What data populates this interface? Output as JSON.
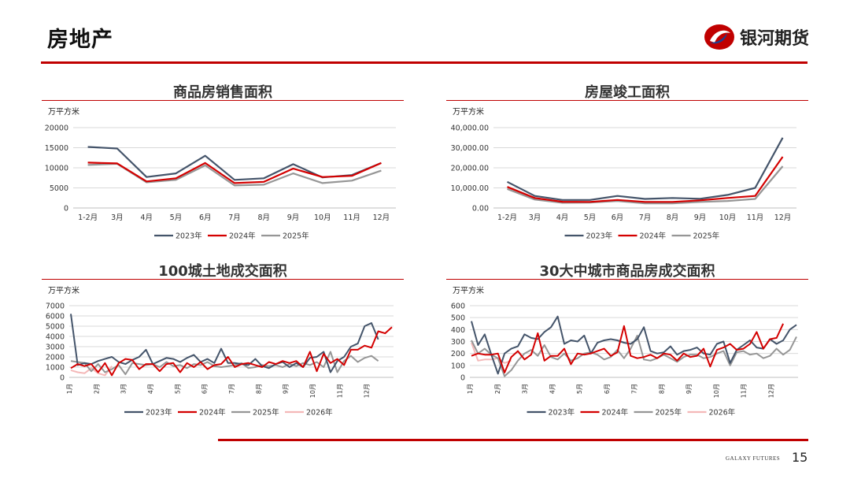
{
  "header": {
    "title": "房地产",
    "brand": "银河期货"
  },
  "footer": {
    "brand": "GALAXY FUTURES",
    "page": "15"
  },
  "colors": {
    "s2023": "#44546a",
    "s2024": "#d40000",
    "s2025": "#969696",
    "s2026": "#f4b8b8",
    "accent": "#c00000"
  },
  "chart_data": [
    {
      "id": "sales",
      "type": "line",
      "title": "商品房销售面积",
      "unit": "万平方米",
      "categories": [
        "1-2月",
        "3月",
        "4月",
        "5月",
        "6月",
        "7月",
        "8月",
        "9月",
        "10月",
        "11月",
        "12月"
      ],
      "ylim": [
        0,
        20000
      ],
      "yticks": [
        "20000",
        "15000",
        "10000",
        "5000",
        "0"
      ],
      "series": [
        {
          "name": "2023年",
          "values": [
            15200,
            14800,
            7700,
            8600,
            13000,
            7000,
            7400,
            10900,
            7600,
            8200,
            11200
          ]
        },
        {
          "name": "2024年",
          "values": [
            11300,
            11100,
            6600,
            7400,
            11200,
            6200,
            6500,
            9800,
            7700,
            8000,
            11200
          ]
        },
        {
          "name": "2025年",
          "values": [
            10700,
            11000,
            6400,
            7000,
            10600,
            5600,
            5800,
            8600,
            6200,
            6800,
            9300
          ]
        }
      ]
    },
    {
      "id": "completion",
      "type": "line",
      "title": "房屋竣工面积",
      "unit": "万平方米",
      "categories": [
        "1-2月",
        "3月",
        "4月",
        "5月",
        "6月",
        "7月",
        "8月",
        "9月",
        "10月",
        "11月",
        "12月"
      ],
      "ylim": [
        0,
        40000
      ],
      "yticks": [
        "40,000.00",
        "30,000.00",
        "20,000.00",
        "10,000.00",
        "0.00"
      ],
      "series": [
        {
          "name": "2023年",
          "values": [
            13000,
            6000,
            4000,
            4000,
            6000,
            4500,
            5000,
            4600,
            6500,
            10000,
            35000
          ]
        },
        {
          "name": "2024年",
          "values": [
            10500,
            5000,
            3100,
            3000,
            4000,
            3000,
            3000,
            3800,
            5000,
            6000,
            25500
          ]
        },
        {
          "name": "2025年",
          "values": [
            9500,
            4200,
            2600,
            2700,
            3500,
            2300,
            2300,
            3000,
            3500,
            4500,
            20800
          ]
        }
      ]
    },
    {
      "id": "land100",
      "type": "line",
      "title": "100城土地成交面积",
      "unit": "万平方米",
      "ylim": [
        0,
        7000
      ],
      "yticks": [
        "7000",
        "6000",
        "5000",
        "4000",
        "3000",
        "2000",
        "1000",
        "0"
      ],
      "xticks": [
        "1月",
        "2月",
        "3月",
        "4月",
        "5月",
        "6月",
        "7月",
        "8月",
        "9月",
        "10月",
        "11月",
        "12月"
      ],
      "series": [
        {
          "name": "2023年",
          "values": [
            6200,
            1200,
            1400,
            1300,
            1600,
            1800,
            2000,
            1500,
            1300,
            1700,
            2000,
            2700,
            1300,
            1600,
            1900,
            1800,
            1500,
            1900,
            2200,
            1500,
            1800,
            1400,
            2800,
            1400,
            1400,
            1300,
            1200,
            1800,
            1100,
            900,
            1300,
            1500,
            1000,
            1400,
            1000,
            1900,
            2000,
            2500,
            500,
            1600,
            2000,
            3000,
            3300,
            5000,
            5300,
            3700
          ]
        },
        {
          "name": "2024年",
          "values": [
            900,
            1300,
            1100,
            1300,
            500,
            1400,
            200,
            1400,
            1800,
            1700,
            800,
            1300,
            1300,
            600,
            1300,
            1400,
            500,
            1400,
            1000,
            1500,
            800,
            1200,
            1300,
            2000,
            1000,
            1300,
            1400,
            1200,
            1000,
            1500,
            1300,
            1600,
            1400,
            1600,
            1000,
            2500,
            600,
            2300,
            1400,
            1800,
            1200,
            2700,
            2700,
            3100,
            2900,
            4500,
            4300,
            4900
          ]
        },
        {
          "name": "2025年",
          "values": [
            1600,
            1500,
            1400,
            600,
            1300,
            500,
            800,
            1200,
            300,
            1400,
            1300,
            1200,
            1300,
            1000,
            1500,
            1100,
            1200,
            900,
            1300,
            1200,
            1500,
            1100,
            1000,
            1100,
            1200,
            1400,
            900,
            1000,
            1200,
            1100,
            1200,
            1000,
            1300,
            1100,
            1400,
            1200,
            1500,
            1000,
            2500,
            500,
            1600,
            2100,
            1500,
            1900,
            2100,
            1600
          ]
        },
        {
          "name": "2026年",
          "values": [
            700,
            500,
            400,
            900,
            400,
            200,
            1100
          ]
        }
      ]
    },
    {
      "id": "sales30",
      "type": "line",
      "title": "30大中城市商品房成交面积",
      "unit": "万平方米",
      "ylim": [
        0,
        600
      ],
      "yticks": [
        "600",
        "500",
        "400",
        "300",
        "200",
        "100",
        "0"
      ],
      "xticks": [
        "1月",
        "2月",
        "3月",
        "4月",
        "5月",
        "6月",
        "7月",
        "8月",
        "9月",
        "10月",
        "11月",
        "12月"
      ],
      "series": [
        {
          "name": "2023年",
          "values": [
            470,
            270,
            360,
            190,
            30,
            200,
            240,
            260,
            360,
            330,
            320,
            380,
            420,
            510,
            280,
            310,
            300,
            350,
            200,
            290,
            310,
            320,
            310,
            290,
            280,
            320,
            420,
            220,
            200,
            210,
            260,
            190,
            220,
            230,
            250,
            200,
            190,
            280,
            300,
            120,
            230,
            270,
            310,
            250,
            240,
            320,
            280,
            310,
            400,
            440
          ]
        },
        {
          "name": "2024年",
          "values": [
            180,
            200,
            190,
            190,
            200,
            40,
            170,
            220,
            150,
            190,
            370,
            140,
            180,
            180,
            240,
            110,
            200,
            190,
            200,
            220,
            240,
            180,
            210,
            430,
            180,
            160,
            170,
            190,
            160,
            200,
            190,
            140,
            200,
            170,
            180,
            240,
            90,
            230,
            250,
            280,
            230,
            240,
            280,
            380,
            240,
            320,
            330,
            450
          ]
        },
        {
          "name": "2025年",
          "values": [
            310,
            200,
            240,
            190,
            160,
            10,
            60,
            140,
            200,
            230,
            180,
            270,
            170,
            150,
            200,
            140,
            160,
            200,
            210,
            190,
            150,
            170,
            230,
            160,
            240,
            350,
            150,
            140,
            160,
            190,
            160,
            130,
            170,
            190,
            190,
            160,
            170,
            200,
            220,
            100,
            210,
            220,
            190,
            200,
            160,
            180,
            240,
            190,
            230,
            340
          ]
        },
        {
          "name": "2026年",
          "values": [
            290,
            140,
            150,
            150,
            160,
            120,
            140
          ]
        }
      ]
    }
  ]
}
